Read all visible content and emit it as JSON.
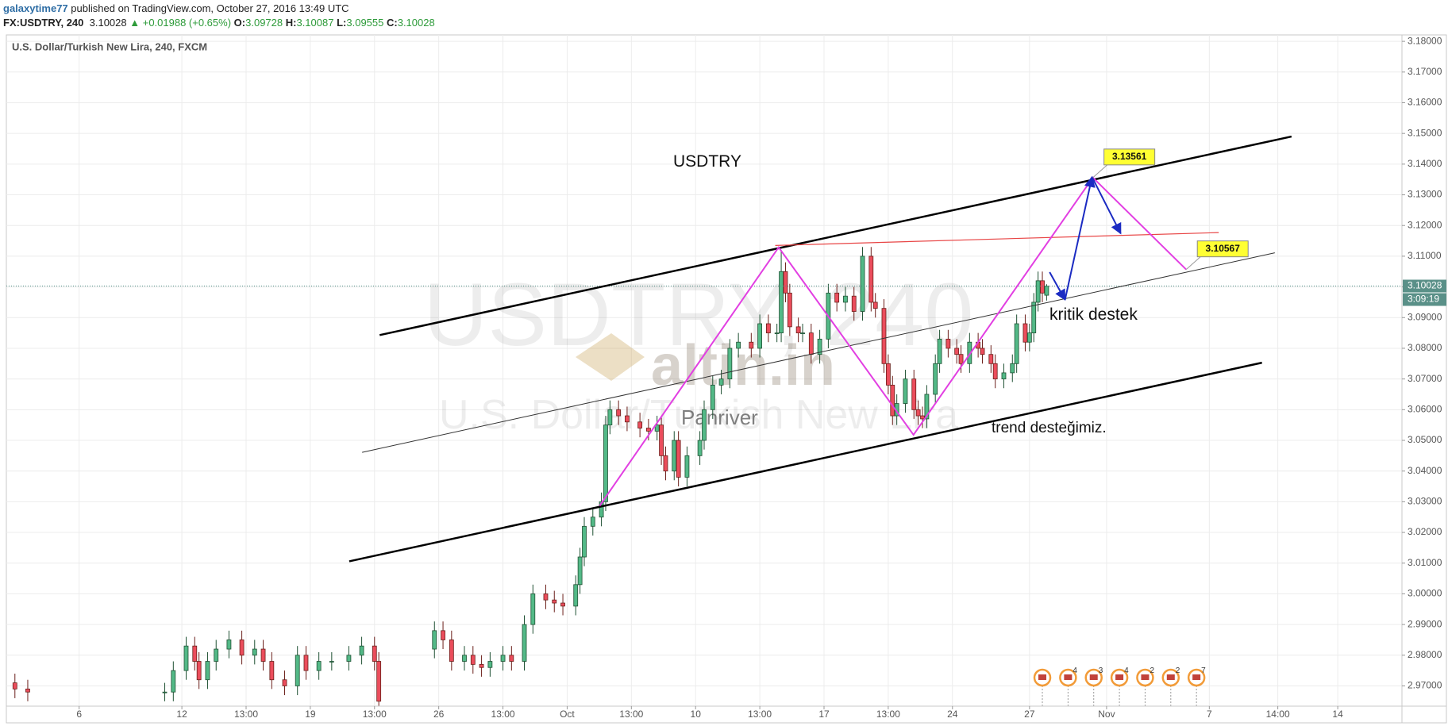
{
  "header": {
    "user": "galaxytime77",
    "published": "published on TradingView.com, October 27, 2016 13:49 UTC",
    "symbol": "FX:USDTRY, 240",
    "last": "3.10028",
    "change": "▲ +0.01988 (+0.65%)",
    "ohlc": [
      {
        "label": "O:",
        "value": "3.09728"
      },
      {
        "label": "H:",
        "value": "3.10087"
      },
      {
        "label": "L:",
        "value": "3.09555"
      },
      {
        "label": "C:",
        "value": "3.10028"
      }
    ]
  },
  "chart_data": {
    "type": "candlestick",
    "title": "U.S. Dollar/Turkish New Lira, 240, FXCM",
    "watermark": {
      "symbol": "USDTRY, 240",
      "description": "U.S. Dollar/Turkish New Lira"
    },
    "logo": {
      "name": "altin.in",
      "author": "Panriver"
    },
    "annotations": [
      "USDTRY",
      "kritik destek",
      "trend desteğimiz."
    ],
    "countdown": "3:09:19",
    "up_color": "#53b987",
    "down_color": "#eb4d5c",
    "grid": true,
    "xlim": [
      -41,
      285
    ],
    "ylim": [
      2.9634,
      3.1821
    ],
    "xticks": [
      {
        "value": -24,
        "label": "6"
      },
      {
        "value": 0,
        "label": "12"
      },
      {
        "value": 15,
        "label": "13:00"
      },
      {
        "value": 30,
        "label": "19"
      },
      {
        "value": 45,
        "label": "13:00"
      },
      {
        "value": 60,
        "label": "26"
      },
      {
        "value": 75,
        "label": "13:00"
      },
      {
        "value": 90,
        "label": "Oct"
      },
      {
        "value": 105,
        "label": "13:00"
      },
      {
        "value": 120,
        "label": "10"
      },
      {
        "value": 135,
        "label": "13:00"
      },
      {
        "value": 150,
        "label": "17"
      },
      {
        "value": 165,
        "label": "13:00"
      },
      {
        "value": 180,
        "label": "24"
      },
      {
        "value": 198,
        "label": "27"
      },
      {
        "value": 216,
        "label": "Nov"
      },
      {
        "value": 240,
        "label": "7"
      },
      {
        "value": 256,
        "label": "14:00"
      },
      {
        "value": 270,
        "label": "14"
      }
    ],
    "yticks": [
      {
        "value": 2.97,
        "label": "2.97000"
      },
      {
        "value": 2.98,
        "label": "2.98000"
      },
      {
        "value": 2.99,
        "label": "2.99000"
      },
      {
        "value": 3.0,
        "label": "3.00000"
      },
      {
        "value": 3.01,
        "label": "3.01000"
      },
      {
        "value": 3.02,
        "label": "3.02000"
      },
      {
        "value": 3.03,
        "label": "3.03000"
      },
      {
        "value": 3.04,
        "label": "3.04000"
      },
      {
        "value": 3.05,
        "label": "3.05000"
      },
      {
        "value": 3.06,
        "label": "3.06000"
      },
      {
        "value": 3.07,
        "label": "3.07000"
      },
      {
        "value": 3.08,
        "label": "3.08000"
      },
      {
        "value": 3.09,
        "label": "3.09000"
      },
      {
        "value": 3.1,
        "label": "3.10000"
      },
      {
        "value": 3.11,
        "label": "3.11000"
      },
      {
        "value": 3.12,
        "label": "3.12000"
      },
      {
        "value": 3.13,
        "label": "3.13000"
      },
      {
        "value": 3.14,
        "label": "3.14000"
      },
      {
        "value": 3.15,
        "label": "3.15000"
      },
      {
        "value": 3.16,
        "label": "3.16000"
      },
      {
        "value": 3.17,
        "label": "3.17000"
      },
      {
        "value": 3.18,
        "label": "3.18000"
      }
    ],
    "x": [
      -39,
      -36,
      -4,
      -2,
      1,
      3,
      4,
      6,
      8,
      11,
      14,
      17,
      19,
      21,
      24,
      27,
      29,
      32,
      35,
      39,
      42,
      45,
      46,
      59,
      61,
      63,
      66,
      68,
      70,
      72,
      75,
      77,
      80,
      82,
      85,
      87,
      89,
      92,
      93,
      94,
      96,
      98,
      99,
      100,
      102,
      104,
      107,
      109,
      111,
      112,
      113,
      115,
      116,
      118,
      121,
      122,
      124,
      126,
      128,
      130,
      133,
      135,
      137,
      139,
      140,
      141,
      142,
      144,
      145,
      147,
      149,
      151,
      153,
      155,
      157,
      159,
      161,
      162,
      164,
      165,
      166,
      167,
      169,
      171,
      172,
      173,
      174,
      176,
      177,
      179,
      181,
      182,
      184,
      186,
      187,
      189,
      190,
      192,
      194,
      195,
      197,
      198,
      199,
      200,
      201,
      202
    ],
    "open": [
      2.971,
      2.969,
      2.968,
      2.968,
      2.975,
      2.983,
      2.978,
      2.972,
      2.978,
      2.982,
      2.985,
      2.98,
      2.982,
      2.978,
      2.972,
      2.97,
      2.98,
      2.975,
      2.978,
      2.978,
      2.98,
      2.983,
      2.978,
      2.982,
      2.988,
      2.985,
      2.978,
      2.98,
      2.977,
      2.976,
      2.978,
      2.98,
      2.978,
      2.99,
      3.0,
      2.998,
      2.997,
      2.996,
      3.003,
      3.012,
      3.022,
      3.025,
      3.03,
      3.055,
      3.06,
      3.058,
      3.056,
      3.054,
      3.053,
      3.055,
      3.045,
      3.04,
      3.05,
      3.038,
      3.045,
      3.05,
      3.06,
      3.068,
      3.07,
      3.08,
      3.082,
      3.08,
      3.088,
      3.085,
      3.085,
      3.105,
      3.098,
      3.087,
      3.085,
      3.085,
      3.078,
      3.083,
      3.098,
      3.095,
      3.097,
      3.092,
      3.11,
      3.095,
      3.093,
      3.075,
      3.068,
      3.058,
      3.062,
      3.07,
      3.06,
      3.058,
      3.057,
      3.065,
      3.075,
      3.083,
      3.08,
      3.078,
      3.075,
      3.082,
      3.08,
      3.078,
      3.075,
      3.07,
      3.072,
      3.075,
      3.088,
      3.082,
      3.085,
      3.095,
      3.102,
      3.09728
    ],
    "high": [
      2.974,
      2.972,
      2.971,
      2.978,
      2.986,
      2.986,
      2.981,
      2.981,
      2.985,
      2.988,
      2.988,
      2.985,
      2.985,
      2.981,
      2.975,
      2.983,
      2.983,
      2.981,
      2.981,
      2.983,
      2.986,
      2.986,
      2.981,
      2.991,
      2.991,
      2.988,
      2.983,
      2.983,
      2.98,
      2.981,
      2.983,
      2.983,
      2.993,
      3.003,
      3.003,
      3.001,
      3.0,
      3.006,
      3.015,
      3.025,
      3.028,
      3.033,
      3.058,
      3.063,
      3.063,
      3.061,
      3.059,
      3.057,
      3.058,
      3.058,
      3.048,
      3.053,
      3.053,
      3.048,
      3.053,
      3.063,
      3.071,
      3.073,
      3.083,
      3.085,
      3.085,
      3.091,
      3.091,
      3.088,
      3.112,
      3.108,
      3.101,
      3.09,
      3.088,
      3.088,
      3.086,
      3.101,
      3.101,
      3.1,
      3.1,
      3.113,
      3.113,
      3.098,
      3.096,
      3.078,
      3.071,
      3.065,
      3.073,
      3.073,
      3.063,
      3.061,
      3.068,
      3.078,
      3.086,
      3.086,
      3.083,
      3.081,
      3.085,
      3.085,
      3.083,
      3.081,
      3.078,
      3.075,
      3.078,
      3.091,
      3.091,
      3.088,
      3.098,
      3.105,
      3.105,
      3.10087
    ],
    "low": [
      2.966,
      2.965,
      2.965,
      2.965,
      2.972,
      2.975,
      2.969,
      2.969,
      2.975,
      2.979,
      2.977,
      2.977,
      2.975,
      2.969,
      2.967,
      2.967,
      2.972,
      2.972,
      2.975,
      2.975,
      2.977,
      2.975,
      2.962,
      2.979,
      2.982,
      2.975,
      2.975,
      2.974,
      2.973,
      2.973,
      2.975,
      2.975,
      2.975,
      2.987,
      2.995,
      2.994,
      2.993,
      2.993,
      3.0,
      3.009,
      3.019,
      3.022,
      3.027,
      3.052,
      3.055,
      3.053,
      3.051,
      3.05,
      3.05,
      3.042,
      3.037,
      3.037,
      3.035,
      3.035,
      3.042,
      3.047,
      3.057,
      3.065,
      3.067,
      3.077,
      3.077,
      3.077,
      3.082,
      3.082,
      3.082,
      3.095,
      3.084,
      3.082,
      3.082,
      3.075,
      3.075,
      3.08,
      3.092,
      3.092,
      3.089,
      3.089,
      3.092,
      3.09,
      3.072,
      3.065,
      3.055,
      3.055,
      3.059,
      3.057,
      3.055,
      3.054,
      3.054,
      3.062,
      3.072,
      3.077,
      3.075,
      3.072,
      3.072,
      3.077,
      3.075,
      3.072,
      3.067,
      3.067,
      3.069,
      3.072,
      3.079,
      3.079,
      3.082,
      3.092,
      3.095,
      3.09555
    ],
    "close": [
      2.969,
      2.968,
      2.968,
      2.975,
      2.983,
      2.978,
      2.972,
      2.978,
      2.982,
      2.985,
      2.98,
      2.982,
      2.978,
      2.972,
      2.97,
      2.98,
      2.975,
      2.978,
      2.978,
      2.98,
      2.983,
      2.978,
      2.965,
      2.988,
      2.985,
      2.978,
      2.98,
      2.977,
      2.976,
      2.978,
      2.98,
      2.978,
      2.99,
      3.0,
      2.998,
      2.997,
      2.996,
      3.003,
      3.012,
      3.022,
      3.025,
      3.03,
      3.055,
      3.06,
      3.058,
      3.056,
      3.054,
      3.053,
      3.055,
      3.045,
      3.04,
      3.05,
      3.038,
      3.045,
      3.05,
      3.06,
      3.068,
      3.07,
      3.08,
      3.082,
      3.08,
      3.088,
      3.085,
      3.085,
      3.105,
      3.098,
      3.087,
      3.085,
      3.085,
      3.078,
      3.083,
      3.098,
      3.095,
      3.097,
      3.092,
      3.11,
      3.095,
      3.093,
      3.075,
      3.068,
      3.058,
      3.062,
      3.07,
      3.06,
      3.058,
      3.057,
      3.065,
      3.075,
      3.083,
      3.08,
      3.078,
      3.075,
      3.082,
      3.08,
      3.078,
      3.075,
      3.07,
      3.072,
      3.075,
      3.088,
      3.082,
      3.085,
      3.095,
      3.102,
      3.098,
      3.10028
    ],
    "lines": [
      {
        "color": "#000000",
        "width": 2.5,
        "points": [
          [
            46.2,
            3.0843
          ],
          [
            259.2,
            3.149
          ]
        ]
      },
      {
        "color": "#000000",
        "width": 2.5,
        "points": [
          [
            39.1,
            3.0106
          ],
          [
            252.3,
            3.0753
          ]
        ]
      },
      {
        "color": "#333333",
        "width": 1,
        "points": [
          [
            42.1,
            3.0461
          ],
          [
            255.3,
            3.1111
          ]
        ]
      },
      {
        "color": "#e84545",
        "width": 1.2,
        "points": [
          [
            138.6,
            3.1135
          ],
          [
            242.2,
            3.1177
          ]
        ]
      },
      {
        "color": "#e23fe2",
        "width": 2,
        "points": [
          [
            97.6,
            3.0287
          ],
          [
            139.4,
            3.1129
          ],
          [
            170.9,
            3.0518
          ],
          [
            212.8,
            3.13561
          ],
          [
            234.6,
            3.10567
          ]
        ]
      }
    ],
    "price_labels": [
      {
        "line": 4,
        "point": 3
      },
      {
        "line": 4,
        "point": 4
      }
    ],
    "arrows": {
      "color": "#1b2bc2",
      "segments": [
        [
          [
            202.7,
            3.1048
          ],
          [
            206.3,
            3.0958
          ]
        ],
        [
          [
            206.3,
            3.0958
          ],
          [
            212.6,
            3.1358
          ]
        ],
        [
          [
            212.6,
            3.1358
          ],
          [
            219.3,
            3.1174
          ]
        ]
      ]
    },
    "events": {
      "x": [
        201,
        207,
        213,
        219,
        225,
        231,
        237
      ],
      "labels": [
        null,
        "4",
        "3",
        "4",
        "2",
        "2",
        "7"
      ]
    }
  }
}
